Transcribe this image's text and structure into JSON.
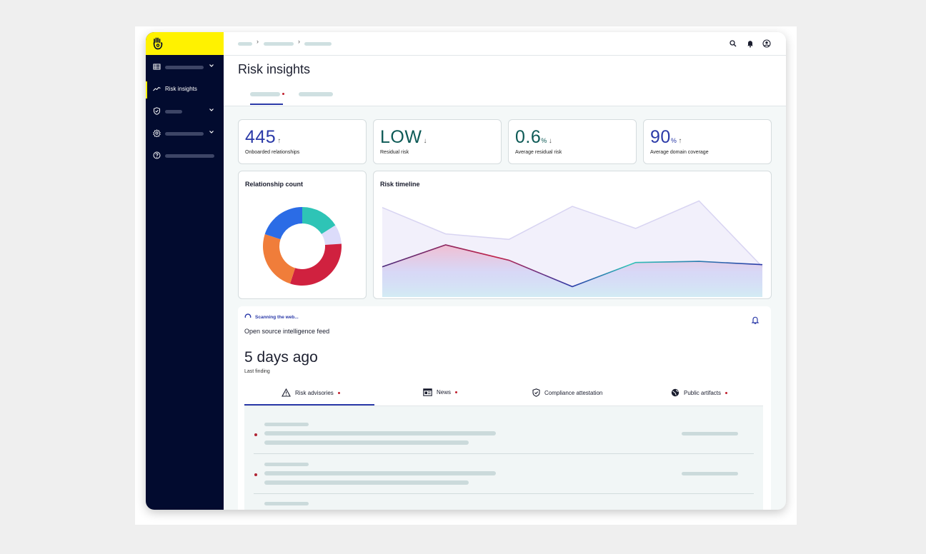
{
  "sidebar": {
    "items": [
      {
        "label": "",
        "icon": "table-icon"
      },
      {
        "label": "Risk insights",
        "icon": "trend-icon"
      },
      {
        "label": "",
        "icon": "shield-icon"
      },
      {
        "label": "",
        "icon": "gear-icon"
      },
      {
        "label": "",
        "icon": "help-icon"
      }
    ]
  },
  "header": {
    "title": "Risk insights"
  },
  "stats": [
    {
      "value": "445",
      "unit": "",
      "arrow": "↑",
      "label": "Onboarded relationships",
      "color": "#2b3aa8"
    },
    {
      "value": "LOW",
      "unit": "",
      "arrow": "↓",
      "label": "Residual risk",
      "color": "#0d5a56"
    },
    {
      "value": "0.6",
      "unit": "%",
      "arrow": "↓",
      "label": "Average residual risk",
      "color": "#0d5a56"
    },
    {
      "value": "90",
      "unit": "%",
      "arrow": "↑",
      "label": "Average domain coverage",
      "color": "#2b3aa8"
    }
  ],
  "relationship_chart": {
    "title": "Relationship count",
    "chart_data": {
      "type": "pie",
      "slices": [
        {
          "value": 16,
          "color": "#2ec4b6"
        },
        {
          "value": 8,
          "color": "#dcdcfa"
        },
        {
          "value": 31,
          "color": "#d0213f"
        },
        {
          "value": 25,
          "color": "#f07d3a"
        },
        {
          "value": 20,
          "color": "#2b6ce6"
        }
      ]
    }
  },
  "timeline_chart": {
    "title": "Risk timeline",
    "chart_data": {
      "type": "area",
      "x": [
        0,
        1,
        2,
        3,
        4,
        5,
        6
      ],
      "ylim": [
        0,
        10
      ],
      "series": [
        {
          "values": [
            8.4,
            6.0,
            5.5,
            8.5,
            6.5,
            9.0,
            3.0
          ]
        },
        {
          "values": [
            3.0,
            5.0,
            3.6,
            1.2,
            3.4,
            3.5,
            3.2
          ]
        }
      ]
    }
  },
  "feed": {
    "status": "Scanning the web...",
    "title": "Open source intelligence feed",
    "last_time": "5 days ago",
    "last_label": "Last finding",
    "tabs": [
      {
        "label": "Risk advisories",
        "icon": "warning-icon"
      },
      {
        "label": "News",
        "icon": "news-icon"
      },
      {
        "label": "Compliance attestation",
        "icon": "shield-check-icon"
      },
      {
        "label": "Public artifacts",
        "icon": "globe-icon"
      }
    ]
  },
  "colors": {
    "accent": "#2b3aa8",
    "sidebar": "#020b2f",
    "brand_yellow": "#fff200",
    "alert_dot": "#c0202e"
  }
}
